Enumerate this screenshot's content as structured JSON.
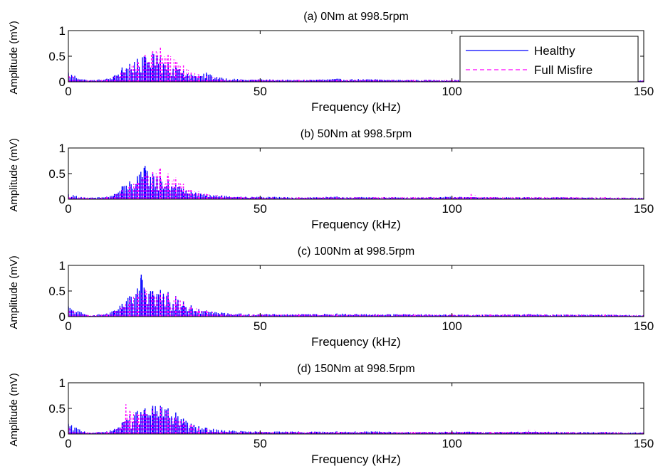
{
  "figure": {
    "background": "#ffffff",
    "axis_color": "#000000"
  },
  "legend": {
    "placement": "top-right of panel (a)",
    "entries": [
      {
        "label": "Healthy",
        "style": "solid",
        "color": "#0000ff"
      },
      {
        "label": "Full Misfire",
        "style": "dashed",
        "color": "#ff00ff"
      }
    ]
  },
  "chart_data": [
    {
      "type": "bar",
      "title": "(a) 0Nm at 998.5rpm",
      "xlabel": "Frequency (kHz)",
      "ylabel": "Amplitude (mV)",
      "xlim": [
        0,
        150
      ],
      "ylim": [
        0,
        1
      ],
      "xticks": [
        "0",
        "50",
        "100",
        "150"
      ],
      "yticks": [
        "0",
        "0.5",
        "1"
      ],
      "grid": false,
      "series": [
        {
          "name": "Healthy",
          "color": "#0000ff",
          "x": [
            0,
            5,
            10,
            12,
            14,
            16,
            18,
            20,
            22,
            24,
            26,
            28,
            30,
            32,
            34,
            36,
            40,
            45,
            50,
            60,
            70,
            80,
            90,
            100,
            110,
            120,
            130,
            140,
            150
          ],
          "y": [
            0.18,
            0.03,
            0.06,
            0.12,
            0.28,
            0.35,
            0.45,
            0.5,
            0.55,
            0.48,
            0.38,
            0.3,
            0.22,
            0.15,
            0.12,
            0.18,
            0.08,
            0.05,
            0.05,
            0.04,
            0.06,
            0.05,
            0.04,
            0.04,
            0.04,
            0.03,
            0.04,
            0.03,
            0.03
          ]
        },
        {
          "name": "Full Misfire",
          "color": "#ff00ff",
          "x": [
            0,
            5,
            10,
            12,
            14,
            16,
            18,
            20,
            22,
            24,
            26,
            28,
            30,
            32,
            34,
            36,
            40,
            45,
            50,
            60,
            70,
            80,
            90,
            100,
            110,
            120,
            130,
            140,
            150
          ],
          "y": [
            0.15,
            0.03,
            0.05,
            0.1,
            0.2,
            0.3,
            0.38,
            0.55,
            0.62,
            0.68,
            0.55,
            0.42,
            0.32,
            0.2,
            0.15,
            0.12,
            0.07,
            0.05,
            0.05,
            0.04,
            0.05,
            0.05,
            0.04,
            0.04,
            0.04,
            0.04,
            0.04,
            0.03,
            0.03
          ]
        }
      ]
    },
    {
      "type": "bar",
      "title": "(b) 50Nm at 998.5rpm",
      "xlabel": "Frequency (kHz)",
      "ylabel": "Amplitude (mV)",
      "xlim": [
        0,
        150
      ],
      "ylim": [
        0,
        1
      ],
      "xticks": [
        "0",
        "50",
        "100",
        "150"
      ],
      "yticks": [
        "0",
        "0.5",
        "1"
      ],
      "grid": false,
      "series": [
        {
          "name": "Healthy",
          "color": "#0000ff",
          "x": [
            0,
            5,
            10,
            12,
            14,
            16,
            18,
            20,
            22,
            24,
            26,
            28,
            30,
            32,
            34,
            36,
            40,
            45,
            50,
            60,
            70,
            80,
            90,
            100,
            110,
            120,
            130,
            140,
            150
          ],
          "y": [
            0.1,
            0.03,
            0.05,
            0.1,
            0.25,
            0.35,
            0.45,
            0.65,
            0.5,
            0.42,
            0.35,
            0.3,
            0.2,
            0.15,
            0.12,
            0.1,
            0.07,
            0.05,
            0.05,
            0.04,
            0.05,
            0.04,
            0.04,
            0.05,
            0.04,
            0.04,
            0.04,
            0.03,
            0.03
          ]
        },
        {
          "name": "Full Misfire",
          "color": "#ff00ff",
          "x": [
            0,
            5,
            10,
            12,
            14,
            16,
            18,
            20,
            22,
            24,
            26,
            28,
            30,
            32,
            34,
            36,
            40,
            45,
            50,
            60,
            70,
            80,
            90,
            100,
            105,
            110,
            120,
            130,
            140,
            150
          ],
          "y": [
            0.08,
            0.03,
            0.04,
            0.08,
            0.18,
            0.28,
            0.35,
            0.5,
            0.55,
            0.6,
            0.5,
            0.42,
            0.3,
            0.2,
            0.15,
            0.1,
            0.08,
            0.06,
            0.05,
            0.04,
            0.05,
            0.05,
            0.05,
            0.05,
            0.1,
            0.05,
            0.05,
            0.06,
            0.04,
            0.03
          ]
        }
      ]
    },
    {
      "type": "bar",
      "title": "(c) 100Nm at 998.5rpm",
      "xlabel": "Frequency (kHz)",
      "ylabel": "Amplitude (mV)",
      "xlim": [
        0,
        150
      ],
      "ylim": [
        0,
        1
      ],
      "xticks": [
        "0",
        "50",
        "100",
        "150"
      ],
      "yticks": [
        "0",
        "0.5",
        "1"
      ],
      "grid": false,
      "series": [
        {
          "name": "Healthy",
          "color": "#0000ff",
          "x": [
            0,
            5,
            10,
            12,
            14,
            16,
            18,
            19,
            20,
            22,
            24,
            26,
            28,
            30,
            32,
            34,
            36,
            40,
            45,
            50,
            60,
            70,
            80,
            90,
            100,
            110,
            120,
            130,
            140,
            150
          ],
          "y": [
            0.2,
            0.03,
            0.06,
            0.12,
            0.25,
            0.4,
            0.55,
            0.82,
            0.5,
            0.5,
            0.52,
            0.48,
            0.4,
            0.3,
            0.22,
            0.15,
            0.12,
            0.08,
            0.06,
            0.05,
            0.05,
            0.06,
            0.05,
            0.05,
            0.04,
            0.04,
            0.05,
            0.04,
            0.04,
            0.03
          ]
        },
        {
          "name": "Full Misfire",
          "color": "#ff00ff",
          "x": [
            0,
            5,
            10,
            12,
            14,
            16,
            18,
            20,
            22,
            24,
            26,
            28,
            30,
            32,
            34,
            36,
            40,
            45,
            50,
            60,
            70,
            80,
            90,
            100,
            110,
            120,
            130,
            140,
            150
          ],
          "y": [
            0.15,
            0.03,
            0.05,
            0.1,
            0.2,
            0.35,
            0.45,
            0.55,
            0.45,
            0.48,
            0.45,
            0.4,
            0.3,
            0.2,
            0.15,
            0.12,
            0.07,
            0.05,
            0.05,
            0.05,
            0.05,
            0.05,
            0.05,
            0.05,
            0.05,
            0.06,
            0.05,
            0.04,
            0.03
          ]
        }
      ]
    },
    {
      "type": "bar",
      "title": "(d) 150Nm at 998.5rpm",
      "xlabel": "Frequency (kHz)",
      "ylabel": "Amplitude (mV)",
      "xlim": [
        0,
        150
      ],
      "ylim": [
        0,
        1
      ],
      "xticks": [
        "0",
        "50",
        "100",
        "150"
      ],
      "yticks": [
        "0",
        "0.5",
        "1"
      ],
      "grid": false,
      "series": [
        {
          "name": "Healthy",
          "color": "#0000ff",
          "x": [
            0,
            5,
            10,
            12,
            14,
            16,
            18,
            20,
            22,
            24,
            26,
            28,
            30,
            32,
            34,
            36,
            40,
            45,
            50,
            60,
            70,
            80,
            90,
            100,
            110,
            120,
            130,
            140,
            150
          ],
          "y": [
            0.2,
            0.03,
            0.05,
            0.1,
            0.22,
            0.35,
            0.45,
            0.5,
            0.55,
            0.55,
            0.5,
            0.42,
            0.3,
            0.2,
            0.15,
            0.12,
            0.08,
            0.06,
            0.05,
            0.05,
            0.05,
            0.05,
            0.04,
            0.05,
            0.04,
            0.05,
            0.04,
            0.04,
            0.03
          ]
        },
        {
          "name": "Full Misfire",
          "color": "#ff00ff",
          "x": [
            0,
            5,
            10,
            12,
            14,
            15,
            16,
            18,
            20,
            22,
            24,
            26,
            28,
            30,
            32,
            34,
            36,
            40,
            45,
            50,
            60,
            70,
            80,
            90,
            100,
            110,
            120,
            130,
            140,
            150
          ],
          "y": [
            0.15,
            0.03,
            0.04,
            0.08,
            0.2,
            0.58,
            0.45,
            0.4,
            0.45,
            0.5,
            0.52,
            0.45,
            0.35,
            0.25,
            0.18,
            0.12,
            0.1,
            0.07,
            0.05,
            0.05,
            0.05,
            0.05,
            0.05,
            0.05,
            0.06,
            0.05,
            0.08,
            0.05,
            0.04,
            0.03
          ]
        }
      ]
    }
  ]
}
